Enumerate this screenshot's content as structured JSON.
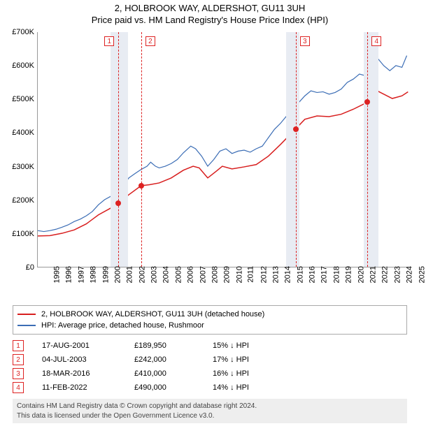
{
  "title": "2, HOLBROOK WAY, ALDERSHOT, GU11 3UH",
  "subtitle": "Price paid vs. HM Land Registry's House Price Index (HPI)",
  "chart": {
    "type": "line",
    "background_color": "#ffffff",
    "axis_color": "#999999",
    "label_fontsize": 11,
    "ylim": [
      0,
      700000
    ],
    "ytick_step": 100000,
    "ytick_labels": [
      "£0",
      "£100K",
      "£200K",
      "£300K",
      "£400K",
      "£500K",
      "£600K",
      "£700K"
    ],
    "xlim": [
      1995,
      2025.6
    ],
    "xtick_start": 1995,
    "xtick_end": 2025,
    "xtick_step": 1,
    "band_color": "#e8ecf3",
    "bands": [
      {
        "from": 2001.0,
        "to": 2002.4
      },
      {
        "from": 2015.4,
        "to": 2016.5
      },
      {
        "from": 2021.8,
        "to": 2023.0
      }
    ],
    "marker_line_color": "#d22",
    "markers": [
      {
        "n": "1",
        "year": 2001.63,
        "anchor": "left"
      },
      {
        "n": "2",
        "year": 2003.51,
        "anchor": "right"
      },
      {
        "n": "3",
        "year": 2016.21,
        "anchor": "right"
      },
      {
        "n": "4",
        "year": 2022.11,
        "anchor": "right"
      }
    ],
    "series": [
      {
        "name": "property",
        "label": "2, HOLBROOK WAY, ALDERSHOT, GU11 3UH (detached house)",
        "color": "#d81e1e",
        "line_width": 1.5,
        "data": [
          [
            1995.0,
            92000
          ],
          [
            1996.0,
            93000
          ],
          [
            1997.0,
            100000
          ],
          [
            1998.0,
            110000
          ],
          [
            1999.0,
            128000
          ],
          [
            2000.0,
            155000
          ],
          [
            2001.0,
            175000
          ],
          [
            2001.63,
            189950
          ],
          [
            2002.5,
            215000
          ],
          [
            2003.51,
            242000
          ],
          [
            2004.2,
            245000
          ],
          [
            2005.0,
            250000
          ],
          [
            2006.0,
            265000
          ],
          [
            2007.0,
            288000
          ],
          [
            2007.8,
            300000
          ],
          [
            2008.3,
            295000
          ],
          [
            2009.0,
            265000
          ],
          [
            2009.7,
            285000
          ],
          [
            2010.2,
            300000
          ],
          [
            2011.0,
            292000
          ],
          [
            2012.0,
            298000
          ],
          [
            2013.0,
            305000
          ],
          [
            2014.0,
            330000
          ],
          [
            2015.0,
            365000
          ],
          [
            2016.21,
            410000
          ],
          [
            2017.0,
            440000
          ],
          [
            2018.0,
            450000
          ],
          [
            2019.0,
            448000
          ],
          [
            2020.0,
            455000
          ],
          [
            2021.0,
            470000
          ],
          [
            2022.11,
            490000
          ],
          [
            2022.8,
            528000
          ],
          [
            2023.5,
            515000
          ],
          [
            2024.2,
            502000
          ],
          [
            2025.0,
            510000
          ],
          [
            2025.5,
            522000
          ]
        ]
      },
      {
        "name": "hpi",
        "label": "HPI: Average price, detached house, Rushmoor",
        "color": "#3b6db5",
        "line_width": 1.2,
        "data": [
          [
            1995.0,
            108000
          ],
          [
            1995.5,
            105000
          ],
          [
            1996.0,
            108000
          ],
          [
            1996.5,
            112000
          ],
          [
            1997.0,
            118000
          ],
          [
            1997.5,
            125000
          ],
          [
            1998.0,
            135000
          ],
          [
            1998.5,
            142000
          ],
          [
            1999.0,
            152000
          ],
          [
            1999.5,
            165000
          ],
          [
            2000.0,
            185000
          ],
          [
            2000.5,
            200000
          ],
          [
            2001.0,
            210000
          ],
          [
            2001.5,
            215000
          ],
          [
            2002.0,
            240000
          ],
          [
            2002.5,
            265000
          ],
          [
            2003.0,
            278000
          ],
          [
            2003.5,
            290000
          ],
          [
            2004.0,
            300000
          ],
          [
            2004.3,
            312000
          ],
          [
            2004.7,
            300000
          ],
          [
            2005.0,
            295000
          ],
          [
            2005.5,
            300000
          ],
          [
            2006.0,
            308000
          ],
          [
            2006.5,
            320000
          ],
          [
            2007.0,
            340000
          ],
          [
            2007.6,
            360000
          ],
          [
            2008.0,
            352000
          ],
          [
            2008.5,
            330000
          ],
          [
            2009.0,
            300000
          ],
          [
            2009.5,
            320000
          ],
          [
            2010.0,
            345000
          ],
          [
            2010.5,
            352000
          ],
          [
            2011.0,
            338000
          ],
          [
            2011.5,
            345000
          ],
          [
            2012.0,
            348000
          ],
          [
            2012.5,
            342000
          ],
          [
            2013.0,
            352000
          ],
          [
            2013.5,
            360000
          ],
          [
            2014.0,
            385000
          ],
          [
            2014.5,
            410000
          ],
          [
            2015.0,
            428000
          ],
          [
            2015.5,
            450000
          ],
          [
            2016.0,
            475000
          ],
          [
            2016.5,
            490000
          ],
          [
            2017.0,
            510000
          ],
          [
            2017.5,
            525000
          ],
          [
            2018.0,
            520000
          ],
          [
            2018.5,
            522000
          ],
          [
            2019.0,
            515000
          ],
          [
            2019.5,
            520000
          ],
          [
            2020.0,
            530000
          ],
          [
            2020.5,
            550000
          ],
          [
            2021.0,
            560000
          ],
          [
            2021.5,
            575000
          ],
          [
            2022.0,
            570000
          ],
          [
            2022.5,
            610000
          ],
          [
            2023.0,
            622000
          ],
          [
            2023.5,
            600000
          ],
          [
            2024.0,
            585000
          ],
          [
            2024.5,
            600000
          ],
          [
            2025.0,
            595000
          ],
          [
            2025.4,
            630000
          ]
        ]
      }
    ],
    "sale_points": [
      {
        "year": 2001.63,
        "price": 189950
      },
      {
        "year": 2003.51,
        "price": 242000
      },
      {
        "year": 2016.21,
        "price": 410000
      },
      {
        "year": 2022.11,
        "price": 490000
      }
    ]
  },
  "legend": {
    "border_color": "#aaaaaa",
    "items": [
      {
        "color": "#d81e1e",
        "label_path": "chart.series.0.label"
      },
      {
        "color": "#3b6db5",
        "label_path": "chart.series.1.label"
      }
    ]
  },
  "transactions": {
    "arrow_glyph": "↓",
    "hpi_label": "HPI",
    "rows": [
      {
        "n": "1",
        "date": "17-AUG-2001",
        "price": "£189,950",
        "diff": "15%"
      },
      {
        "n": "2",
        "date": "04-JUL-2003",
        "price": "£242,000",
        "diff": "17%"
      },
      {
        "n": "3",
        "date": "18-MAR-2016",
        "price": "£410,000",
        "diff": "16%"
      },
      {
        "n": "4",
        "date": "11-FEB-2022",
        "price": "£490,000",
        "diff": "14%"
      }
    ]
  },
  "footer": {
    "line1": "Contains HM Land Registry data © Crown copyright and database right 2024.",
    "line2": "This data is licensed under the Open Government Licence v3.0.",
    "background": "#eeeeee",
    "text_color": "#444444"
  }
}
